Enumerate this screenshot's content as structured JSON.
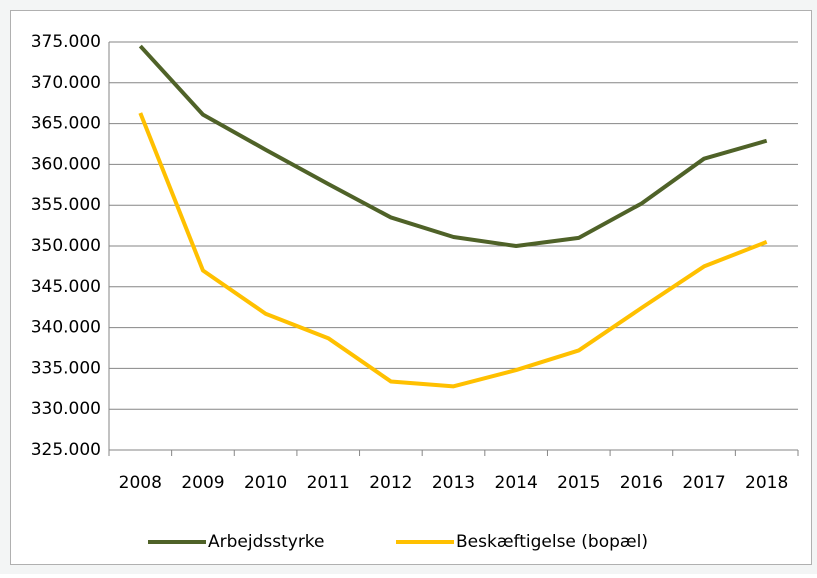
{
  "chart_data": {
    "type": "line",
    "categories": [
      "2008",
      "2009",
      "2010",
      "2011",
      "2012",
      "2013",
      "2014",
      "2015",
      "2016",
      "2017",
      "2018"
    ],
    "series": [
      {
        "name": "Arbejdsstyrke",
        "color": "#4f6228",
        "values": [
          374500,
          366100,
          361800,
          357600,
          353500,
          351100,
          350000,
          351000,
          355200,
          360700,
          362900
        ]
      },
      {
        "name": "Beskæftigelse (bopæl)",
        "color": "#ffc000",
        "values": [
          366300,
          347000,
          341700,
          338700,
          333400,
          332800,
          334800,
          337200,
          342400,
          347500,
          350500
        ]
      }
    ],
    "ylim": [
      325000,
      375000
    ],
    "yticks": [
      {
        "value": 325000,
        "label": "325.000"
      },
      {
        "value": 330000,
        "label": "330.000"
      },
      {
        "value": 335000,
        "label": "335.000"
      },
      {
        "value": 340000,
        "label": "340.000"
      },
      {
        "value": 345000,
        "label": "345.000"
      },
      {
        "value": 350000,
        "label": "350.000"
      },
      {
        "value": 355000,
        "label": "355.000"
      },
      {
        "value": 360000,
        "label": "360.000"
      },
      {
        "value": 365000,
        "label": "365.000"
      },
      {
        "value": 370000,
        "label": "370.000"
      },
      {
        "value": 375000,
        "label": "375.000"
      }
    ],
    "grid": true,
    "legend": "bottom"
  }
}
